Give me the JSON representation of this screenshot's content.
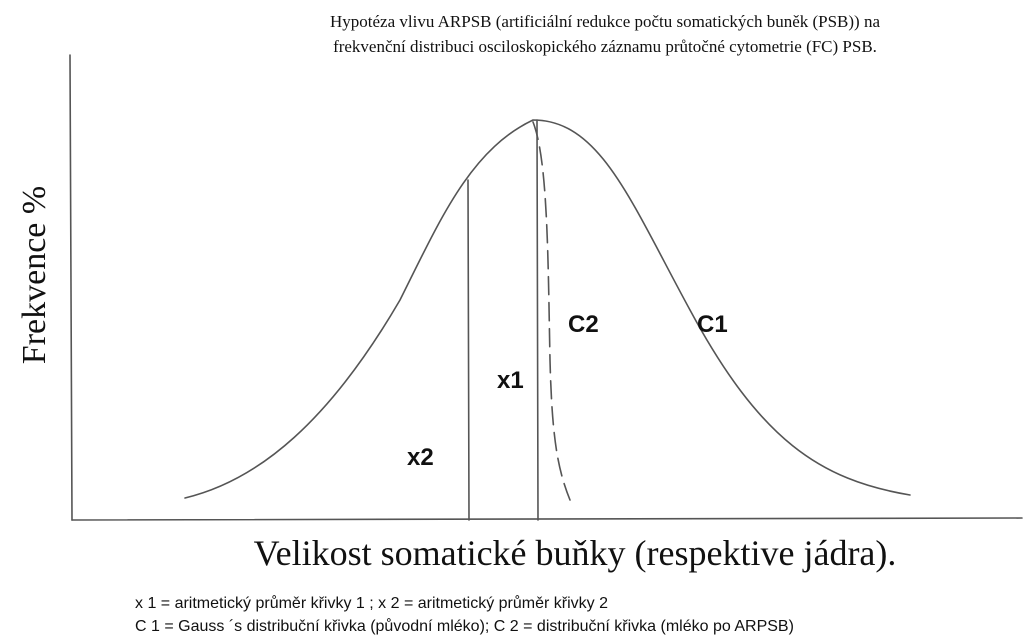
{
  "title": {
    "line1": "Hypotéza vlivu ARPSB (artificiální redukce počtu somatických buněk (PSB)) na",
    "line2": "frekvenční distribuci osciloskopického záznamu průtočné cytometrie (FC) PSB."
  },
  "axes": {
    "y_label": "Frekvence %",
    "x_label": "Velikost somatické buňky (respektive jádra)."
  },
  "curve_labels": {
    "c1": "C1",
    "c2": "C2",
    "x1": "x1",
    "x2": "x2"
  },
  "legend": {
    "line1": "x 1 = aritmetický průměr křivky 1 ; x 2  = aritmetický průměr křivky 2",
    "line2": "C 1 = Gauss ´s  distribuční křivka (původní mléko); C 2 = distribuční křivka (mléko po ARPSB)"
  }
}
